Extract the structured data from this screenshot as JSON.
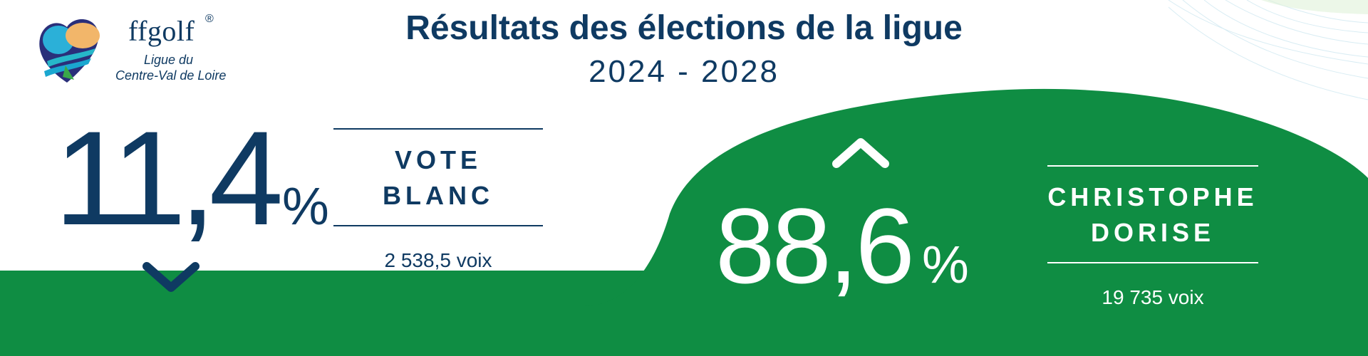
{
  "header": {
    "title": "Résultats des élections de la ligue",
    "subtitle": "2024 - 2028"
  },
  "logo": {
    "brand": "ffgolf",
    "registered": "®",
    "line1": "Ligue du",
    "line2": "Centre-Val de Loire"
  },
  "left": {
    "percent": "11,4",
    "unit": "%",
    "label_line1": "VOTE",
    "label_line2": "BLANC",
    "votes": "2 538,5 voix",
    "trend_icon": "chevron-down-icon"
  },
  "right": {
    "percent": "88,6",
    "unit": "%",
    "label_line1": "CHRISTOPHE",
    "label_line2": "DORISE",
    "votes": "19 735 voix",
    "trend_icon": "chevron-up-icon"
  },
  "colors": {
    "navy": "#0f3a62",
    "green": "#0f8d43",
    "white": "#ffffff"
  }
}
